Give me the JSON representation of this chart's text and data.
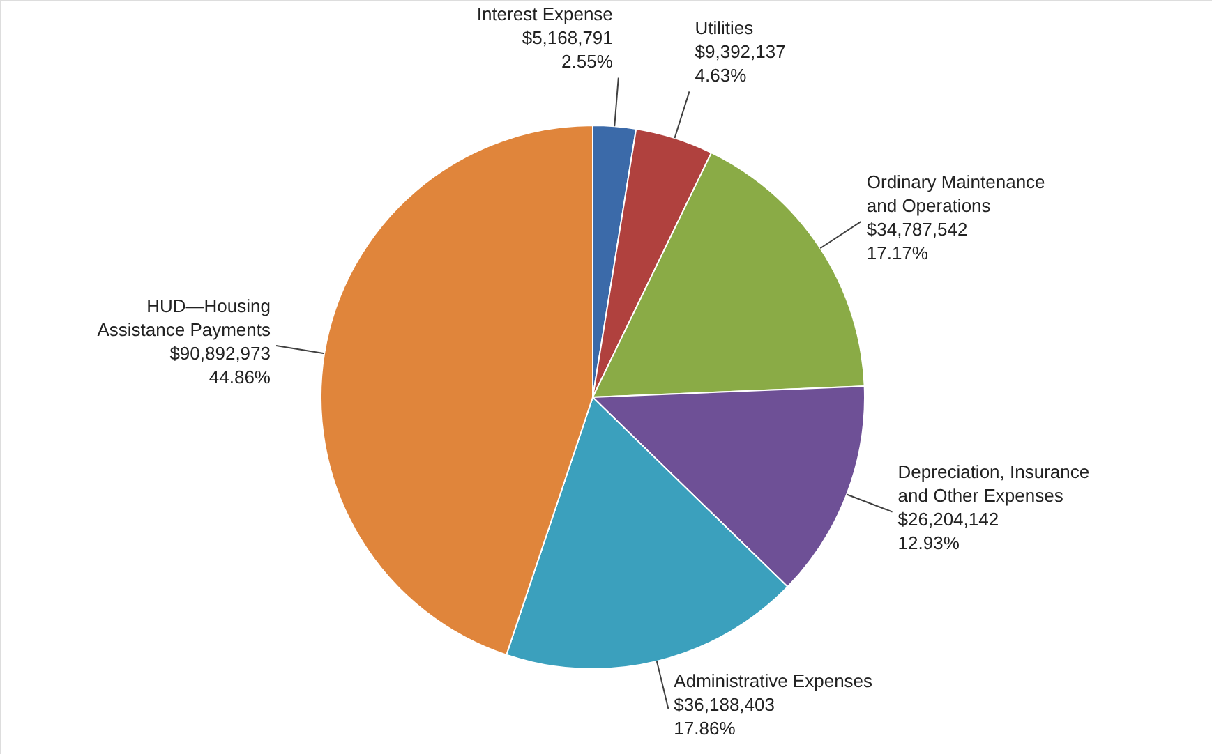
{
  "chart_data": {
    "type": "pie",
    "categories": [
      "Interest Expense",
      "Utilities",
      "Ordinary Maintenance\nand Operations",
      "Depreciation, Insurance\nand Other Expenses",
      "Administrative Expenses",
      "HUD—Housing\nAssistance Payments"
    ],
    "values": [
      5168791,
      9392137,
      34787542,
      26204142,
      36188403,
      90892973
    ],
    "value_labels": [
      "$5,168,791\n2.55%",
      "$9,392,137\n4.63%",
      "$34,787,542\n17.17%",
      "$26,204,142\n12.93%",
      "$36,188,403\n17.86%",
      "$90,892,973\n44.86%"
    ],
    "colors": [
      "#3b6aa9",
      "#b0413e",
      "#8aab46",
      "#6e5096",
      "#3ba0bd",
      "#e0853b"
    ]
  }
}
